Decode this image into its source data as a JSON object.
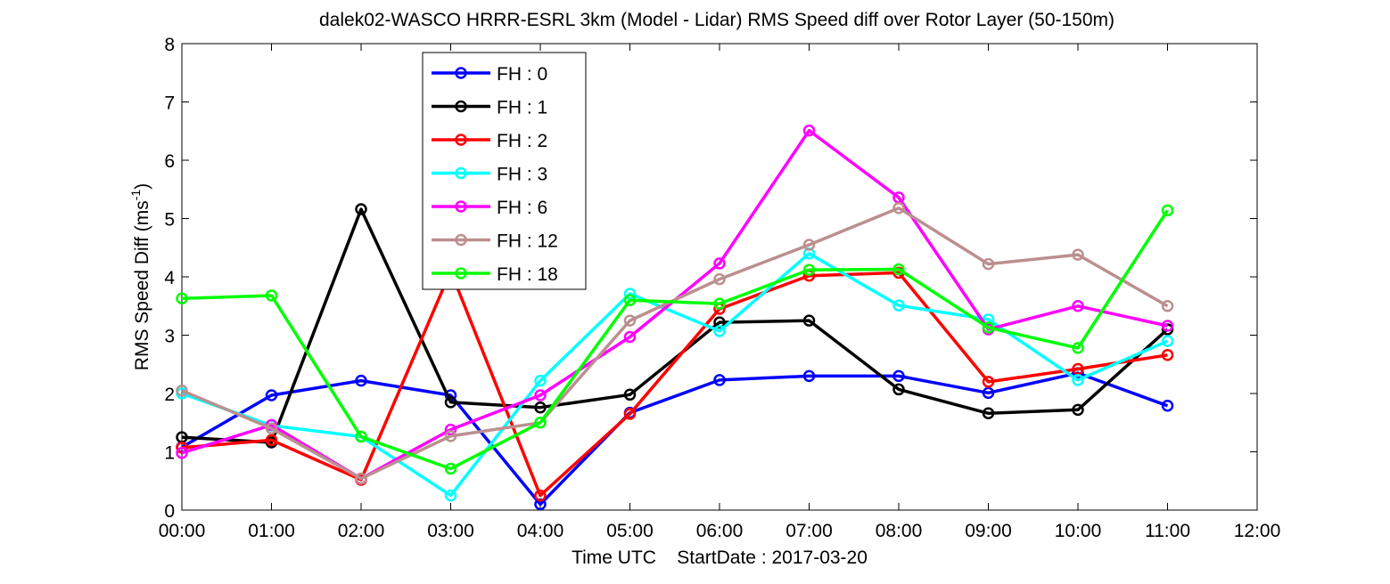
{
  "chart_data": {
    "type": "line",
    "title": "dalek02-WASCO HRRR-ESRL 3km (Model - Lidar) RMS Speed diff over Rotor Layer (50-150m)",
    "xlabel": "Time UTC    StartDate : 2017-03-20",
    "ylabel_main": "RMS Speed Diff (ms",
    "ylabel_sup": "-1",
    "ylabel_end": ")",
    "x_ticks": [
      "00:00",
      "01:00",
      "02:00",
      "03:00",
      "04:00",
      "05:00",
      "06:00",
      "07:00",
      "08:00",
      "09:00",
      "10:00",
      "11:00",
      "12:00"
    ],
    "y_ticks": [
      "0",
      "1",
      "2",
      "3",
      "4",
      "5",
      "6",
      "7",
      "8"
    ],
    "xlim": [
      0,
      12
    ],
    "ylim": [
      0,
      8
    ],
    "grid": false,
    "legend_position": "top-left-inside",
    "x": [
      0,
      1,
      2,
      3,
      4,
      5,
      6,
      7,
      8,
      9,
      10,
      11
    ],
    "series": [
      {
        "name": "FH : 0",
        "color": "#0000ff",
        "values": [
          1.08,
          1.97,
          2.22,
          1.97,
          0.1,
          1.67,
          2.23,
          2.3,
          2.3,
          2.01,
          2.35,
          1.79
        ]
      },
      {
        "name": "FH : 1",
        "color": "#000000",
        "values": [
          1.25,
          1.16,
          5.16,
          1.85,
          1.76,
          1.98,
          3.22,
          3.25,
          2.07,
          1.66,
          1.72,
          3.1
        ]
      },
      {
        "name": "FH : 2",
        "color": "#ff0000",
        "values": [
          1.07,
          1.2,
          0.52,
          4.1,
          0.25,
          1.65,
          3.45,
          4.02,
          4.07,
          2.2,
          2.42,
          2.66
        ]
      },
      {
        "name": "FH : 3",
        "color": "#00ffff",
        "values": [
          2.0,
          1.45,
          1.26,
          0.25,
          2.22,
          3.71,
          3.07,
          4.4,
          3.51,
          3.27,
          2.23,
          2.9
        ]
      },
      {
        "name": "FH : 6",
        "color": "#ff00ff",
        "values": [
          0.98,
          1.46,
          0.54,
          1.38,
          1.97,
          2.97,
          4.23,
          6.51,
          5.36,
          3.1,
          3.5,
          3.16
        ]
      },
      {
        "name": "FH : 12",
        "color": "#bc8f8f",
        "values": [
          2.05,
          1.4,
          0.54,
          1.27,
          1.5,
          3.25,
          3.96,
          4.55,
          5.18,
          4.22,
          4.38,
          3.5
        ]
      },
      {
        "name": "FH : 18",
        "color": "#00ff00",
        "values": [
          3.63,
          3.68,
          1.26,
          0.71,
          1.5,
          3.6,
          3.54,
          4.12,
          4.13,
          3.13,
          2.78,
          5.14
        ]
      }
    ]
  }
}
